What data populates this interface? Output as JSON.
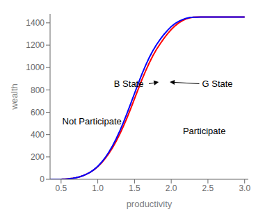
{
  "chart_data": {
    "type": "line",
    "xlabel": "productivity",
    "ylabel": "wealth",
    "xlim": [
      0.35,
      3.05
    ],
    "ylim": [
      0,
      1480
    ],
    "xticks": [
      0.5,
      {
        "value": 1.0,
        "label": "1.0"
      },
      1.5,
      {
        "value": 2.0,
        "label": "2.0"
      },
      2.5,
      {
        "value": 3.0,
        "label": "3.0"
      }
    ],
    "yticks": [
      0,
      200,
      400,
      600,
      800,
      1000,
      1200,
      1400
    ],
    "grid": false,
    "annotations": [
      "B State",
      "G State",
      "Not Participate",
      "Participate"
    ],
    "x": [
      0.35,
      0.4,
      0.45,
      0.5,
      0.52,
      0.55,
      0.58,
      0.62,
      0.66,
      0.7,
      0.75,
      0.8,
      0.85,
      0.9,
      0.95,
      1.0,
      1.05,
      1.1,
      1.15,
      1.2,
      1.25,
      1.3,
      1.35,
      1.4,
      1.45,
      1.5,
      1.55,
      1.6,
      1.65,
      1.7,
      1.75,
      1.8,
      1.85,
      1.9,
      1.95,
      2.0,
      2.05,
      2.1,
      2.15,
      2.2,
      2.25,
      2.3,
      2.35,
      2.4,
      2.5,
      2.6,
      2.8,
      3.0
    ],
    "series": [
      {
        "color": "#FF0000",
        "values": [
          0.0,
          0.0,
          0.0,
          0.5,
          1.0,
          2.0,
          3.5,
          6.0,
          9.0,
          14.0,
          22.0,
          33.0,
          47.0,
          64.0,
          86.0,
          113.0,
          146.0,
          185.0,
          230.0,
          282.0,
          340.0,
          405.0,
          476.0,
          553.0,
          635.0,
          720.0,
          806.0,
          890.0,
          968.0,
          1040.0,
          1105.0,
          1163.0,
          1213.0,
          1260.0,
          1302.0,
          1340.0,
          1372.0,
          1398.0,
          1418.0,
          1434.0,
          1444.0,
          1450.0,
          1452.0,
          1452.0,
          1452.0,
          1452.0,
          1452.0,
          1452.0
        ]
      },
      {
        "color": "#0000FF",
        "values": [
          0.0,
          0.0,
          0.0,
          0.5,
          1.0,
          2.0,
          3.5,
          6.0,
          9.0,
          14.0,
          22.0,
          33.0,
          47.0,
          65.0,
          88.0,
          117.0,
          152.0,
          193.0,
          242.0,
          298.0,
          362.0,
          433.0,
          510.0,
          593.0,
          680.0,
          768.0,
          856.0,
          940.0,
          1018.0,
          1088.0,
          1150.0,
          1205.0,
          1252.0,
          1295.0,
          1333.0,
          1366.0,
          1393.0,
          1413.0,
          1428.0,
          1440.0,
          1447.0,
          1450.0,
          1451.0,
          1452.0,
          1452.0,
          1452.0,
          1452.0,
          1452.0
        ]
      }
    ]
  }
}
